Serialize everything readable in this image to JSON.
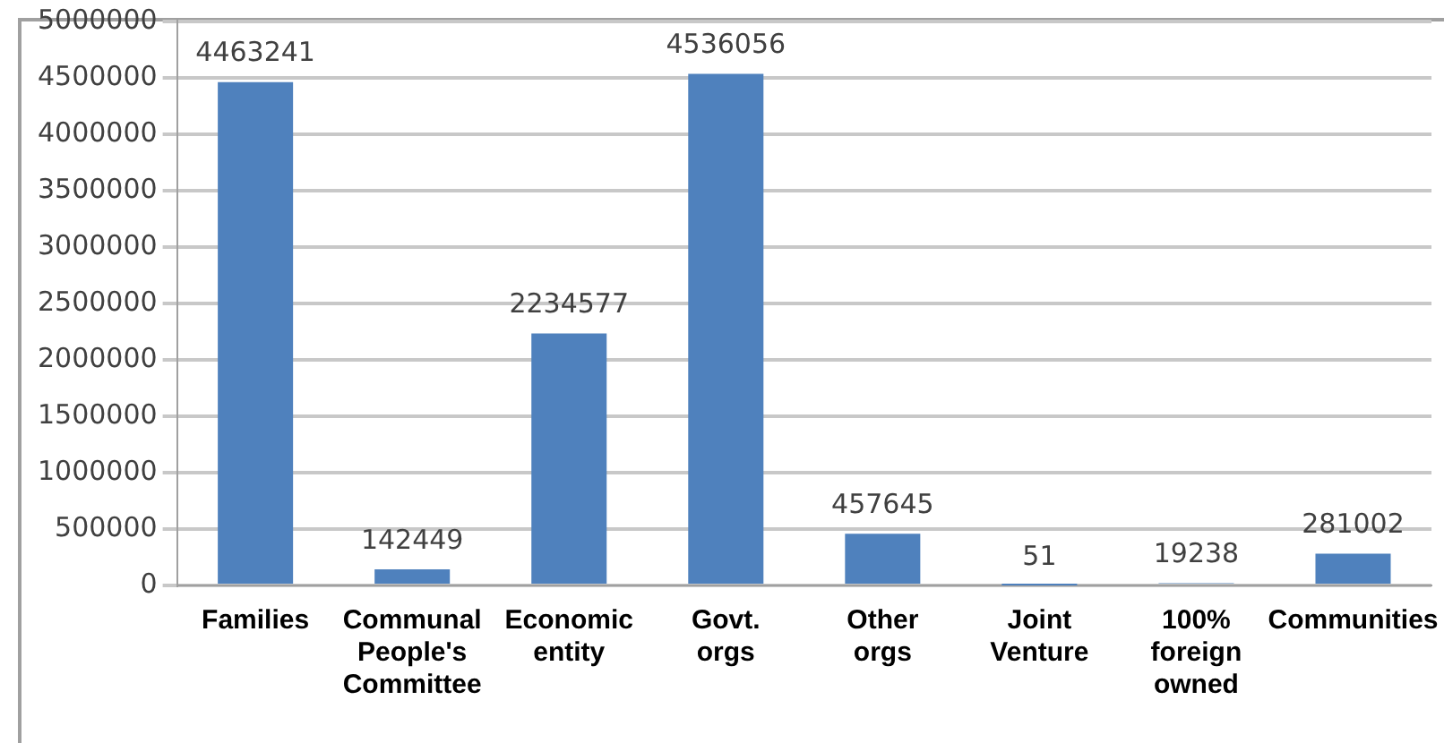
{
  "chart_data": {
    "type": "bar",
    "categories": [
      "Families",
      "Communal People's Committee",
      "Economic entity",
      "Govt. orgs",
      "Other orgs",
      "Joint Venture",
      "100% foreign owned",
      "Communities"
    ],
    "values": [
      4463241,
      142449,
      2234577,
      4536056,
      457645,
      51,
      19238,
      281002
    ],
    "color": "#4f81bd",
    "ylim": [
      0,
      5000000
    ],
    "yticks": [
      0,
      500000,
      1000000,
      1500000,
      2000000,
      2500000,
      3000000,
      3500000,
      4000000,
      4500000,
      5000000
    ],
    "grid": "y",
    "legend": false,
    "data_labels": true
  }
}
